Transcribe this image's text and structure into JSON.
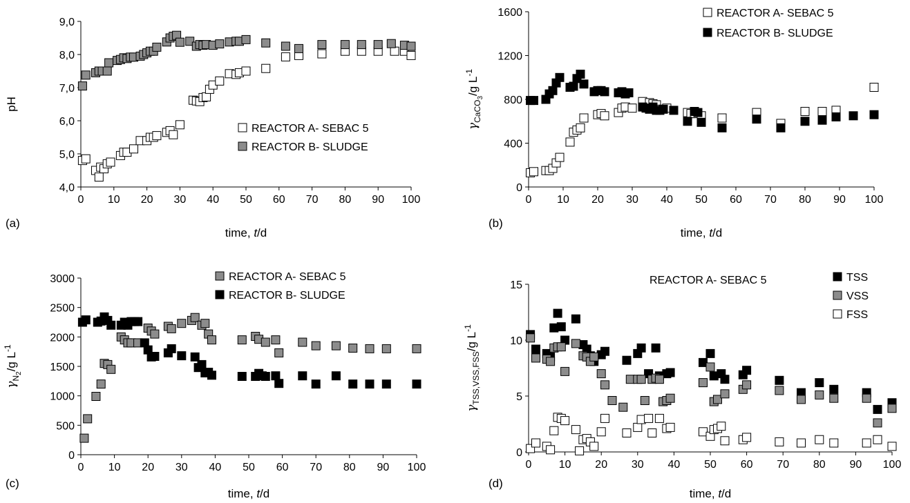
{
  "chart_data": [
    {
      "panel": "(a)",
      "type": "scatter",
      "xlabel": "time, t/d",
      "ylabel": "pH",
      "xlim": [
        0,
        100
      ],
      "ylim": [
        4.0,
        9.0
      ],
      "xticks": [
        "0",
        "10",
        "20",
        "30",
        "40",
        "50",
        "60",
        "70",
        "80",
        "90",
        "100"
      ],
      "yticks": [
        "4,0",
        "5,0",
        "6,0",
        "7,0",
        "8,0",
        "9,0"
      ],
      "legend_position": "middle-right",
      "series": [
        {
          "name": "REACTOR A- SEBAC 5",
          "marker": "open-square",
          "x": [
            0.5,
            1.5,
            4.5,
            5.5,
            6,
            7,
            8,
            9,
            12,
            13,
            14,
            16,
            18,
            20,
            21,
            22,
            23,
            26,
            27,
            28,
            30,
            34,
            35,
            36,
            37,
            38,
            39,
            40,
            42,
            45,
            47,
            48,
            50,
            56,
            62,
            66,
            73,
            80,
            85,
            90,
            95,
            98,
            100
          ],
          "y": [
            4.8,
            4.85,
            4.5,
            4.3,
            4.6,
            4.55,
            4.7,
            4.75,
            4.95,
            5.05,
            5.05,
            5.15,
            5.4,
            5.4,
            5.5,
            5.5,
            5.55,
            5.65,
            5.7,
            5.58,
            5.88,
            6.62,
            6.6,
            6.58,
            6.7,
            6.72,
            6.95,
            7.08,
            7.2,
            7.42,
            7.4,
            7.45,
            7.5,
            7.58,
            7.93,
            7.97,
            8.02,
            8.1,
            8.1,
            8.1,
            8.1,
            8.1,
            7.97
          ]
        },
        {
          "name": "REACTOR B- SLUDGE",
          "marker": "gray-square",
          "x": [
            0.5,
            1.5,
            4.5,
            5.5,
            6.5,
            8,
            8.5,
            11,
            12,
            13,
            14,
            15,
            16,
            18,
            19,
            20,
            21,
            22,
            23,
            26,
            27,
            28,
            29,
            30,
            33,
            35,
            36,
            37,
            38,
            40,
            42,
            45,
            47,
            48,
            50,
            56,
            62,
            66,
            73,
            80,
            85,
            90,
            94,
            98,
            100
          ],
          "y": [
            7.05,
            7.38,
            7.45,
            7.5,
            7.5,
            7.5,
            7.75,
            7.82,
            7.85,
            7.9,
            7.88,
            7.92,
            7.92,
            7.95,
            8.0,
            8.05,
            8.1,
            8.1,
            8.22,
            8.38,
            8.5,
            8.55,
            8.58,
            8.37,
            8.4,
            8.25,
            8.3,
            8.28,
            8.3,
            8.28,
            8.32,
            8.38,
            8.4,
            8.4,
            8.45,
            8.35,
            8.25,
            8.18,
            8.3,
            8.3,
            8.3,
            8.3,
            8.33,
            8.28,
            8.25
          ]
        }
      ]
    },
    {
      "panel": "(b)",
      "type": "scatter",
      "xlabel": "time, t/d",
      "ylabel": "γCaCO3/g L-1",
      "ylabel_parts": {
        "symbol": "γ",
        "sub": "CaCO",
        "sub2": "3",
        "unit": "/g L",
        "sup": "-1"
      },
      "xlim": [
        0,
        100
      ],
      "ylim": [
        0,
        1600
      ],
      "xticks": [
        "0",
        "10",
        "20",
        "30",
        "40",
        "50",
        "60",
        "70",
        "80",
        "90",
        "100"
      ],
      "yticks": [
        "0",
        "400",
        "800",
        "1200",
        "1600"
      ],
      "legend_position": "top-right",
      "series": [
        {
          "name": "REACTOR A- SEBAC 5",
          "marker": "open-square",
          "x": [
            0.5,
            1.5,
            5,
            6,
            7,
            8,
            9,
            12,
            13,
            14,
            15,
            16,
            20,
            21,
            22,
            26,
            27,
            28,
            30,
            33,
            35,
            36,
            37,
            38,
            40,
            46,
            47,
            48,
            50,
            56,
            66,
            73,
            80,
            85,
            89,
            100
          ],
          "y": [
            130,
            140,
            150,
            150,
            170,
            220,
            270,
            410,
            500,
            520,
            540,
            630,
            660,
            670,
            650,
            680,
            720,
            730,
            720,
            780,
            770,
            760,
            750,
            710,
            720,
            680,
            670,
            670,
            650,
            630,
            680,
            580,
            690,
            690,
            700,
            910
          ]
        },
        {
          "name": "REACTOR B- SLUDGE",
          "marker": "filled-square",
          "x": [
            0.5,
            1.5,
            5,
            6,
            7,
            8,
            9,
            12,
            13,
            14,
            15,
            16,
            19,
            20,
            21,
            22,
            26,
            27,
            28,
            29,
            33,
            34,
            35,
            36,
            37,
            38,
            39,
            42,
            46,
            48,
            49,
            50,
            56,
            66,
            73,
            80,
            85,
            89,
            94,
            100
          ],
          "y": [
            790,
            790,
            800,
            850,
            880,
            950,
            1000,
            910,
            920,
            990,
            1030,
            940,
            870,
            880,
            880,
            870,
            860,
            870,
            850,
            860,
            730,
            720,
            710,
            730,
            700,
            700,
            710,
            700,
            600,
            690,
            680,
            590,
            540,
            620,
            540,
            600,
            610,
            640,
            650,
            660
          ]
        }
      ]
    },
    {
      "panel": "(c)",
      "type": "scatter",
      "xlabel": "time, t/d",
      "ylabel": "γN2/g L-1",
      "ylabel_parts": {
        "symbol": "γ",
        "sub": "N",
        "sub2": "2",
        "unit": "/g L",
        "sup": "-1"
      },
      "xlim": [
        0,
        100
      ],
      "ylim": [
        0,
        3000
      ],
      "xticks": [
        "0",
        "10",
        "20",
        "30",
        "40",
        "50",
        "60",
        "70",
        "80",
        "90",
        "100"
      ],
      "yticks": [
        "0",
        "500",
        "1000",
        "1500",
        "2000",
        "2500",
        "3000"
      ],
      "legend_position": "top-right",
      "series": [
        {
          "name": "REACTOR A- SEBAC 5",
          "marker": "gray-square",
          "x": [
            1,
            2,
            4.5,
            6,
            7,
            8,
            9,
            12,
            13,
            14,
            15,
            17,
            20,
            21,
            22,
            26,
            27,
            30,
            33,
            34,
            36,
            37,
            38,
            39,
            48,
            52,
            53,
            55,
            58,
            59,
            66,
            70,
            76,
            81,
            86,
            91,
            100
          ],
          "y": [
            280,
            610,
            990,
            1200,
            1550,
            1530,
            1450,
            2000,
            1950,
            1900,
            1900,
            1900,
            2150,
            2100,
            2050,
            2180,
            2140,
            2230,
            2280,
            2330,
            2200,
            2230,
            2050,
            1950,
            1950,
            2010,
            1960,
            1910,
            1950,
            1730,
            1910,
            1850,
            1850,
            1810,
            1800,
            1800,
            1800
          ]
        },
        {
          "name": "REACTOR B- SLUDGE",
          "marker": "filled-square",
          "x": [
            0.5,
            1.5,
            5,
            6,
            7,
            8,
            9,
            12,
            13,
            14,
            15,
            16,
            17,
            19,
            20,
            21,
            22,
            26,
            27,
            30,
            34,
            35,
            36,
            37,
            38,
            39,
            48,
            52,
            53,
            54,
            55,
            58,
            59,
            66,
            70,
            76,
            81,
            86,
            91,
            100
          ],
          "y": [
            2250,
            2290,
            2250,
            2270,
            2340,
            2280,
            2200,
            2200,
            2250,
            2200,
            2260,
            2260,
            2260,
            1900,
            1780,
            1660,
            1670,
            1730,
            1800,
            1680,
            1660,
            1480,
            1530,
            1390,
            1400,
            1350,
            1330,
            1330,
            1380,
            1340,
            1330,
            1340,
            1210,
            1340,
            1200,
            1340,
            1200,
            1200,
            1200,
            1200
          ]
        }
      ]
    },
    {
      "panel": "(d)",
      "type": "scatter",
      "title": "REACTOR A- SEBAC 5",
      "xlabel": "time, t/d",
      "ylabel": "γTSS,VSS,FSS/g L-1",
      "ylabel_parts": {
        "symbol": "γ",
        "sub": "TSS,VSS,FSS",
        "sub2": "",
        "unit": "/g L",
        "sup": "-1"
      },
      "xlim": [
        0,
        100
      ],
      "ylim": [
        0,
        15
      ],
      "xticks": [
        "0",
        "10",
        "20",
        "30",
        "40",
        "50",
        "60",
        "70",
        "80",
        "90",
        "100"
      ],
      "yticks": [
        "0",
        "5",
        "10",
        "15"
      ],
      "legend_position": "top-right",
      "series": [
        {
          "name": "TSS",
          "marker": "filled-square",
          "x": [
            0.5,
            2,
            5,
            6,
            7,
            8,
            9,
            10,
            13,
            15,
            16,
            17,
            18,
            20,
            21,
            27,
            30,
            31,
            33,
            35,
            36,
            38,
            39,
            48,
            50,
            51,
            53,
            54,
            59,
            60,
            69,
            75,
            80,
            84,
            93,
            96,
            100
          ],
          "y": [
            10.5,
            9.2,
            8.8,
            8.5,
            11.1,
            12.4,
            11.2,
            10.0,
            11.9,
            9.6,
            9.2,
            8.6,
            8.1,
            8.7,
            9.0,
            8.2,
            8.8,
            9.3,
            7.0,
            9.3,
            6.8,
            7.0,
            7.1,
            8.0,
            8.8,
            6.8,
            7.0,
            6.5,
            6.9,
            7.3,
            6.4,
            5.3,
            6.2,
            5.6,
            5.3,
            3.8,
            4.4
          ]
        },
        {
          "name": "VSS",
          "marker": "gray-square",
          "x": [
            0.5,
            2,
            5,
            6,
            7,
            8,
            9,
            10,
            13,
            15,
            16,
            17,
            18,
            20,
            21,
            23,
            26,
            28,
            30,
            31,
            32,
            34,
            35,
            36,
            37,
            38,
            39,
            48,
            50,
            51,
            52,
            54,
            59,
            60,
            69,
            75,
            80,
            84,
            93,
            96,
            100
          ],
          "y": [
            10.2,
            8.4,
            8.3,
            8.1,
            9.3,
            9.4,
            9.4,
            7.2,
            9.7,
            8.6,
            8.5,
            8.1,
            8.5,
            7.0,
            6.0,
            4.6,
            4.0,
            6.5,
            6.5,
            6.5,
            4.6,
            6.5,
            6.6,
            6.5,
            4.5,
            4.6,
            4.8,
            6.2,
            7.6,
            4.5,
            4.7,
            5.2,
            5.6,
            6.0,
            5.5,
            4.7,
            5.1,
            4.8,
            4.8,
            2.6,
            3.9
          ]
        },
        {
          "name": "FSS",
          "marker": "open-square",
          "x": [
            0.5,
            2,
            5,
            6,
            7,
            8,
            9,
            10,
            13,
            14,
            15,
            16,
            17,
            18,
            20,
            21,
            27,
            30,
            31,
            33,
            34,
            36,
            38,
            39,
            48,
            50,
            51,
            52,
            53,
            54,
            59,
            60,
            69,
            75,
            80,
            84,
            93,
            96,
            100
          ],
          "y": [
            0.3,
            0.8,
            0.5,
            0.2,
            1.9,
            3.1,
            3.0,
            2.8,
            2.0,
            0.1,
            1.1,
            1.2,
            0.9,
            0.5,
            1.8,
            3.0,
            1.7,
            2.2,
            2.9,
            3.0,
            1.7,
            3.0,
            2.1,
            2.2,
            1.8,
            1.4,
            2.0,
            2.1,
            2.3,
            1.0,
            1.1,
            1.3,
            0.9,
            0.8,
            1.1,
            0.8,
            0.8,
            1.1,
            0.5
          ]
        }
      ]
    }
  ]
}
